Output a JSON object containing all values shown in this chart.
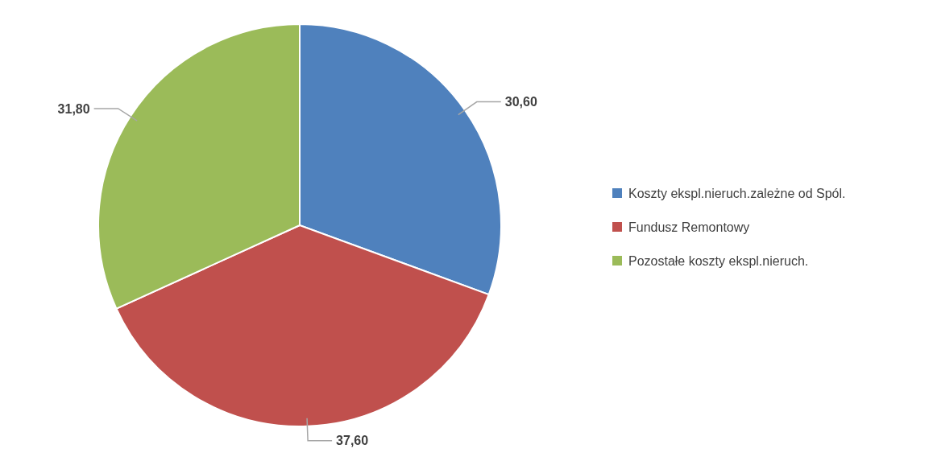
{
  "chart_data": {
    "type": "pie",
    "categories": [
      "Koszty ekspl.nieruch.zależne od Spól.",
      "Fundusz Remontowy",
      "Pozostałe koszty ekspl.nieruch."
    ],
    "values": [
      30.6,
      37.6,
      31.8
    ],
    "value_labels": [
      "30,60",
      "37,60",
      "31,80"
    ],
    "colors": [
      "#4f81bd",
      "#c0504d",
      "#9bbb59"
    ],
    "legend": "right"
  }
}
